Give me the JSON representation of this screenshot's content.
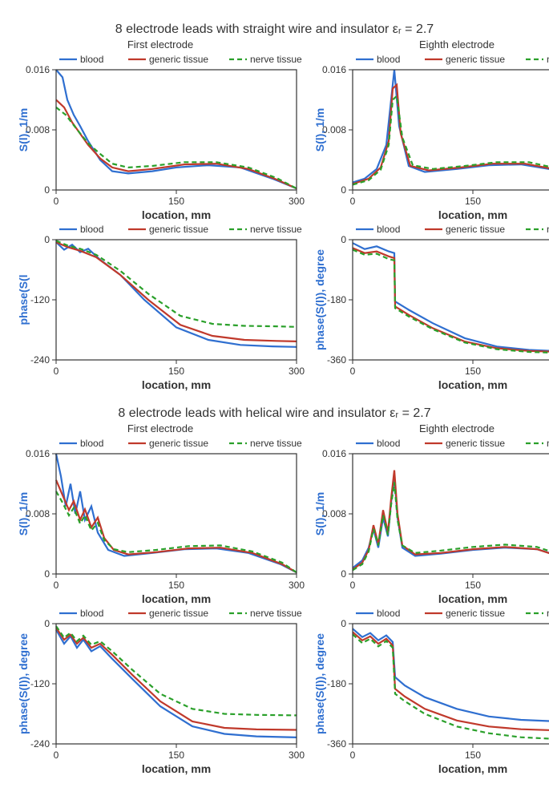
{
  "colors": {
    "blood": "#2f6fd0",
    "generic": "#c0392b",
    "nerve": "#2aa02a",
    "axis": "#333333",
    "grid": "#cccccc",
    "ylabel": "#2f6fd0",
    "bg": "#ffffff"
  },
  "legend_labels": [
    "blood",
    "generic tissue",
    "nerve tissue"
  ],
  "section1_title": "8 electrode leads with straight wire and insulator εᵣ = 2.7",
  "section2_title": "8 electrode leads with helical wire and insulator εᵣ = 2.7",
  "col_titles": [
    "First electrode",
    "Eighth electrode"
  ],
  "stroke_width": 2.2,
  "axis_fontsize": 12,
  "label_fontsize_x": 14,
  "label_fontsize_y": 14,
  "legend_fontsize": 12,
  "charts": {
    "amp_xlim": [
      0,
      300
    ],
    "amp_xticks": [
      0,
      150,
      300
    ],
    "amp_ylim": [
      0,
      0.016
    ],
    "amp_yticks": [
      0,
      0.008,
      0.016
    ],
    "amp_ylabel": "S(l), 1/m",
    "xlabel": "location, mm",
    "phaseA_ylim": [
      -240,
      0
    ],
    "phaseA_yticks": [
      -240,
      -120,
      0
    ],
    "phaseB_ylim": [
      -360,
      0
    ],
    "phaseB_yticks": [
      -360,
      -180,
      0
    ],
    "phase_ylabel": "phase(S(l)), degree",
    "phase_ylabel_short": "phase(S(l",
    "s1_first_amp": {
      "blood": [
        [
          0,
          0.016
        ],
        [
          8,
          0.015
        ],
        [
          14,
          0.012
        ],
        [
          22,
          0.01
        ],
        [
          30,
          0.0085
        ],
        [
          40,
          0.0065
        ],
        [
          55,
          0.004
        ],
        [
          70,
          0.0025
        ],
        [
          90,
          0.0022
        ],
        [
          120,
          0.0025
        ],
        [
          150,
          0.003
        ],
        [
          190,
          0.0033
        ],
        [
          230,
          0.003
        ],
        [
          270,
          0.0015
        ],
        [
          300,
          0.0002
        ]
      ],
      "generic": [
        [
          0,
          0.012
        ],
        [
          10,
          0.011
        ],
        [
          20,
          0.009
        ],
        [
          30,
          0.0075
        ],
        [
          40,
          0.006
        ],
        [
          55,
          0.0042
        ],
        [
          70,
          0.003
        ],
        [
          90,
          0.0025
        ],
        [
          120,
          0.0028
        ],
        [
          160,
          0.0034
        ],
        [
          200,
          0.0035
        ],
        [
          240,
          0.0028
        ],
        [
          275,
          0.0014
        ],
        [
          300,
          0.0002
        ]
      ],
      "nerve": [
        [
          0,
          0.011
        ],
        [
          12,
          0.01
        ],
        [
          25,
          0.0082
        ],
        [
          40,
          0.0062
        ],
        [
          55,
          0.0048
        ],
        [
          70,
          0.0035
        ],
        [
          90,
          0.003
        ],
        [
          120,
          0.0032
        ],
        [
          160,
          0.0037
        ],
        [
          200,
          0.0037
        ],
        [
          240,
          0.003
        ],
        [
          275,
          0.0016
        ],
        [
          300,
          0.0002
        ]
      ]
    },
    "s1_eighth_amp": {
      "blood": [
        [
          0,
          0.001
        ],
        [
          15,
          0.0015
        ],
        [
          30,
          0.0028
        ],
        [
          42,
          0.006
        ],
        [
          48,
          0.012
        ],
        [
          52,
          0.016
        ],
        [
          58,
          0.0085
        ],
        [
          70,
          0.0032
        ],
        [
          90,
          0.0024
        ],
        [
          130,
          0.0028
        ],
        [
          170,
          0.0033
        ],
        [
          210,
          0.0034
        ],
        [
          250,
          0.0027
        ],
        [
          280,
          0.0014
        ],
        [
          300,
          0.0002
        ]
      ],
      "generic": [
        [
          0,
          0.0008
        ],
        [
          20,
          0.0015
        ],
        [
          35,
          0.003
        ],
        [
          45,
          0.0065
        ],
        [
          50,
          0.0135
        ],
        [
          55,
          0.014
        ],
        [
          60,
          0.0075
        ],
        [
          72,
          0.0032
        ],
        [
          95,
          0.0026
        ],
        [
          135,
          0.003
        ],
        [
          175,
          0.0035
        ],
        [
          215,
          0.0035
        ],
        [
          255,
          0.0027
        ],
        [
          285,
          0.0014
        ],
        [
          300,
          0.0002
        ]
      ],
      "nerve": [
        [
          0,
          0.0007
        ],
        [
          20,
          0.0013
        ],
        [
          35,
          0.0027
        ],
        [
          45,
          0.006
        ],
        [
          50,
          0.012
        ],
        [
          55,
          0.0125
        ],
        [
          62,
          0.007
        ],
        [
          75,
          0.0033
        ],
        [
          100,
          0.0028
        ],
        [
          140,
          0.0032
        ],
        [
          180,
          0.0037
        ],
        [
          220,
          0.0037
        ],
        [
          258,
          0.0028
        ],
        [
          285,
          0.0015
        ],
        [
          300,
          0.0002
        ]
      ]
    },
    "s1_first_phase": {
      "blood": [
        [
          0,
          -5
        ],
        [
          10,
          -20
        ],
        [
          20,
          -10
        ],
        [
          30,
          -25
        ],
        [
          40,
          -18
        ],
        [
          55,
          -40
        ],
        [
          80,
          -70
        ],
        [
          110,
          -120
        ],
        [
          150,
          -175
        ],
        [
          190,
          -200
        ],
        [
          230,
          -210
        ],
        [
          270,
          -213
        ],
        [
          300,
          -214
        ]
      ],
      "generic": [
        [
          0,
          -5
        ],
        [
          15,
          -15
        ],
        [
          30,
          -22
        ],
        [
          50,
          -35
        ],
        [
          80,
          -70
        ],
        [
          115,
          -120
        ],
        [
          155,
          -170
        ],
        [
          195,
          -192
        ],
        [
          235,
          -200
        ],
        [
          275,
          -202
        ],
        [
          300,
          -203
        ]
      ],
      "nerve": [
        [
          0,
          -2
        ],
        [
          15,
          -12
        ],
        [
          30,
          -18
        ],
        [
          50,
          -30
        ],
        [
          80,
          -62
        ],
        [
          115,
          -108
        ],
        [
          155,
          -152
        ],
        [
          195,
          -168
        ],
        [
          235,
          -172
        ],
        [
          275,
          -173
        ],
        [
          300,
          -174
        ]
      ]
    },
    "s1_eighth_phase": {
      "blood": [
        [
          0,
          -10
        ],
        [
          15,
          -28
        ],
        [
          30,
          -20
        ],
        [
          45,
          -35
        ],
        [
          52,
          -40
        ],
        [
          53,
          -185
        ],
        [
          70,
          -210
        ],
        [
          100,
          -250
        ],
        [
          140,
          -295
        ],
        [
          180,
          -320
        ],
        [
          220,
          -330
        ],
        [
          260,
          -334
        ],
        [
          300,
          -335
        ]
      ],
      "generic": [
        [
          0,
          -25
        ],
        [
          15,
          -40
        ],
        [
          30,
          -35
        ],
        [
          45,
          -50
        ],
        [
          52,
          -55
        ],
        [
          53,
          -200
        ],
        [
          70,
          -225
        ],
        [
          100,
          -265
        ],
        [
          140,
          -305
        ],
        [
          180,
          -325
        ],
        [
          220,
          -333
        ],
        [
          260,
          -336
        ],
        [
          300,
          -337
        ]
      ],
      "nerve": [
        [
          0,
          -30
        ],
        [
          15,
          -45
        ],
        [
          30,
          -42
        ],
        [
          45,
          -58
        ],
        [
          52,
          -62
        ],
        [
          53,
          -205
        ],
        [
          70,
          -230
        ],
        [
          100,
          -268
        ],
        [
          140,
          -308
        ],
        [
          180,
          -328
        ],
        [
          220,
          -336
        ],
        [
          260,
          -339
        ],
        [
          300,
          -340
        ]
      ]
    },
    "s2_first_amp": {
      "blood": [
        [
          0,
          0.016
        ],
        [
          6,
          0.013
        ],
        [
          12,
          0.009
        ],
        [
          18,
          0.012
        ],
        [
          24,
          0.008
        ],
        [
          30,
          0.011
        ],
        [
          36,
          0.0072
        ],
        [
          44,
          0.009
        ],
        [
          52,
          0.0055
        ],
        [
          65,
          0.0032
        ],
        [
          85,
          0.0024
        ],
        [
          120,
          0.0028
        ],
        [
          160,
          0.0033
        ],
        [
          200,
          0.0034
        ],
        [
          240,
          0.0028
        ],
        [
          280,
          0.0013
        ],
        [
          300,
          0.0002
        ]
      ],
      "generic": [
        [
          0,
          0.0125
        ],
        [
          8,
          0.0105
        ],
        [
          16,
          0.0085
        ],
        [
          22,
          0.0097
        ],
        [
          30,
          0.0072
        ],
        [
          36,
          0.0086
        ],
        [
          44,
          0.0062
        ],
        [
          52,
          0.0075
        ],
        [
          60,
          0.0048
        ],
        [
          72,
          0.0032
        ],
        [
          90,
          0.0026
        ],
        [
          125,
          0.0029
        ],
        [
          165,
          0.0034
        ],
        [
          205,
          0.0035
        ],
        [
          245,
          0.0028
        ],
        [
          282,
          0.0013
        ],
        [
          300,
          0.0002
        ]
      ],
      "nerve": [
        [
          0,
          0.011
        ],
        [
          8,
          0.0095
        ],
        [
          16,
          0.0078
        ],
        [
          22,
          0.0088
        ],
        [
          30,
          0.0067
        ],
        [
          36,
          0.0078
        ],
        [
          44,
          0.0058
        ],
        [
          52,
          0.0068
        ],
        [
          60,
          0.0045
        ],
        [
          72,
          0.0033
        ],
        [
          90,
          0.0029
        ],
        [
          125,
          0.0032
        ],
        [
          165,
          0.0037
        ],
        [
          205,
          0.0038
        ],
        [
          245,
          0.003
        ],
        [
          282,
          0.0015
        ],
        [
          300,
          0.0002
        ]
      ]
    },
    "s2_eighth_amp": {
      "blood": [
        [
          0,
          0.0008
        ],
        [
          12,
          0.0018
        ],
        [
          20,
          0.0035
        ],
        [
          26,
          0.006
        ],
        [
          32,
          0.0035
        ],
        [
          38,
          0.0075
        ],
        [
          44,
          0.005
        ],
        [
          48,
          0.0095
        ],
        [
          52,
          0.013
        ],
        [
          56,
          0.0075
        ],
        [
          62,
          0.0035
        ],
        [
          78,
          0.0024
        ],
        [
          110,
          0.0027
        ],
        [
          150,
          0.0032
        ],
        [
          190,
          0.0035
        ],
        [
          230,
          0.0033
        ],
        [
          270,
          0.002
        ],
        [
          300,
          0.0002
        ]
      ],
      "generic": [
        [
          0,
          0.0006
        ],
        [
          12,
          0.0015
        ],
        [
          20,
          0.0032
        ],
        [
          26,
          0.0065
        ],
        [
          32,
          0.004
        ],
        [
          38,
          0.0085
        ],
        [
          44,
          0.0055
        ],
        [
          48,
          0.01
        ],
        [
          52,
          0.0138
        ],
        [
          56,
          0.008
        ],
        [
          62,
          0.0038
        ],
        [
          78,
          0.0026
        ],
        [
          110,
          0.0028
        ],
        [
          150,
          0.0033
        ],
        [
          190,
          0.0036
        ],
        [
          230,
          0.0033
        ],
        [
          270,
          0.0019
        ],
        [
          300,
          0.0002
        ]
      ],
      "nerve": [
        [
          0,
          0.0005
        ],
        [
          12,
          0.0013
        ],
        [
          20,
          0.003
        ],
        [
          26,
          0.006
        ],
        [
          32,
          0.0038
        ],
        [
          38,
          0.0078
        ],
        [
          44,
          0.0052
        ],
        [
          48,
          0.0092
        ],
        [
          52,
          0.0122
        ],
        [
          56,
          0.0072
        ],
        [
          62,
          0.0038
        ],
        [
          78,
          0.0028
        ],
        [
          110,
          0.0031
        ],
        [
          150,
          0.0036
        ],
        [
          190,
          0.0039
        ],
        [
          230,
          0.0036
        ],
        [
          270,
          0.0022
        ],
        [
          300,
          0.0002
        ]
      ]
    },
    "s2_first_phase": {
      "blood": [
        [
          0,
          -12
        ],
        [
          10,
          -40
        ],
        [
          18,
          -25
        ],
        [
          26,
          -48
        ],
        [
          34,
          -32
        ],
        [
          44,
          -55
        ],
        [
          55,
          -45
        ],
        [
          70,
          -70
        ],
        [
          95,
          -110
        ],
        [
          130,
          -165
        ],
        [
          170,
          -205
        ],
        [
          210,
          -220
        ],
        [
          250,
          -225
        ],
        [
          300,
          -227
        ]
      ],
      "generic": [
        [
          0,
          -8
        ],
        [
          10,
          -32
        ],
        [
          18,
          -22
        ],
        [
          26,
          -40
        ],
        [
          34,
          -28
        ],
        [
          44,
          -48
        ],
        [
          55,
          -40
        ],
        [
          70,
          -62
        ],
        [
          95,
          -102
        ],
        [
          130,
          -155
        ],
        [
          170,
          -195
        ],
        [
          210,
          -208
        ],
        [
          250,
          -211
        ],
        [
          300,
          -212
        ]
      ],
      "nerve": [
        [
          0,
          -5
        ],
        [
          10,
          -28
        ],
        [
          18,
          -18
        ],
        [
          26,
          -35
        ],
        [
          34,
          -24
        ],
        [
          44,
          -42
        ],
        [
          55,
          -35
        ],
        [
          70,
          -55
        ],
        [
          95,
          -92
        ],
        [
          130,
          -140
        ],
        [
          170,
          -170
        ],
        [
          210,
          -180
        ],
        [
          250,
          -182
        ],
        [
          300,
          -183
        ]
      ]
    },
    "s2_eighth_phase": {
      "blood": [
        [
          0,
          -15
        ],
        [
          12,
          -40
        ],
        [
          22,
          -28
        ],
        [
          32,
          -50
        ],
        [
          42,
          -35
        ],
        [
          50,
          -55
        ],
        [
          53,
          -160
        ],
        [
          65,
          -185
        ],
        [
          90,
          -220
        ],
        [
          130,
          -255
        ],
        [
          170,
          -278
        ],
        [
          210,
          -288
        ],
        [
          260,
          -293
        ],
        [
          300,
          -295
        ]
      ],
      "generic": [
        [
          0,
          -25
        ],
        [
          12,
          -50
        ],
        [
          22,
          -38
        ],
        [
          32,
          -60
        ],
        [
          42,
          -45
        ],
        [
          50,
          -65
        ],
        [
          53,
          -195
        ],
        [
          65,
          -218
        ],
        [
          90,
          -255
        ],
        [
          130,
          -290
        ],
        [
          170,
          -308
        ],
        [
          210,
          -316
        ],
        [
          260,
          -320
        ],
        [
          300,
          -321
        ]
      ],
      "nerve": [
        [
          0,
          -32
        ],
        [
          12,
          -58
        ],
        [
          22,
          -45
        ],
        [
          32,
          -68
        ],
        [
          42,
          -52
        ],
        [
          50,
          -72
        ],
        [
          53,
          -210
        ],
        [
          65,
          -232
        ],
        [
          90,
          -270
        ],
        [
          130,
          -308
        ],
        [
          170,
          -328
        ],
        [
          210,
          -340
        ],
        [
          260,
          -346
        ],
        [
          300,
          -348
        ]
      ]
    }
  }
}
